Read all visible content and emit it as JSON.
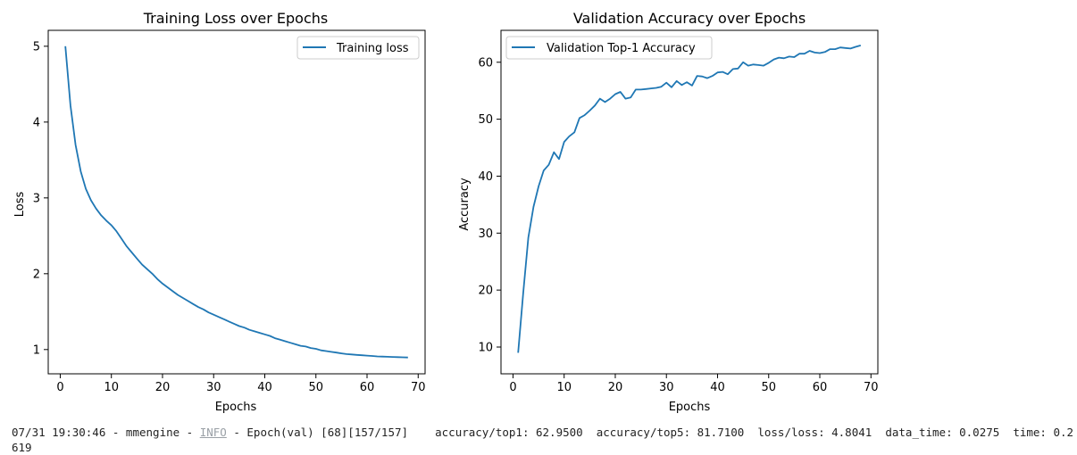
{
  "colors": {
    "line": "#1f77b4",
    "axis": "#000000",
    "legend_border": "#cccccc"
  },
  "chart_data": [
    {
      "type": "line",
      "title": "Training Loss over Epochs",
      "xlabel": "Epochs",
      "ylabel": "Loss",
      "xlim": [
        -2.35,
        71.35
      ],
      "ylim": [
        0.68,
        5.21
      ],
      "xticks": [
        "0",
        "10",
        "20",
        "30",
        "40",
        "50",
        "60",
        "70"
      ],
      "yticks": [
        "1",
        "2",
        "3",
        "4",
        "5"
      ],
      "grid": false,
      "legend_position": "top-right",
      "series": [
        {
          "name": "Training loss",
          "x": [
            1,
            2,
            3,
            4,
            5,
            6,
            7,
            8,
            9,
            10,
            11,
            12,
            13,
            14,
            15,
            16,
            17,
            18,
            19,
            20,
            21,
            22,
            23,
            24,
            25,
            26,
            27,
            28,
            29,
            30,
            31,
            32,
            33,
            34,
            35,
            36,
            37,
            38,
            39,
            40,
            41,
            42,
            43,
            44,
            45,
            46,
            47,
            48,
            49,
            50,
            51,
            52,
            53,
            54,
            55,
            56,
            57,
            58,
            59,
            60,
            61,
            62,
            63,
            64,
            65,
            66,
            67,
            68
          ],
          "y": [
            5.0,
            4.22,
            3.7,
            3.35,
            3.12,
            2.97,
            2.86,
            2.77,
            2.7,
            2.64,
            2.56,
            2.46,
            2.36,
            2.28,
            2.2,
            2.12,
            2.06,
            2.0,
            1.93,
            1.87,
            1.82,
            1.77,
            1.72,
            1.68,
            1.64,
            1.6,
            1.56,
            1.53,
            1.49,
            1.46,
            1.43,
            1.4,
            1.37,
            1.34,
            1.31,
            1.29,
            1.26,
            1.24,
            1.22,
            1.2,
            1.18,
            1.15,
            1.13,
            1.11,
            1.09,
            1.07,
            1.05,
            1.04,
            1.02,
            1.01,
            0.99,
            0.98,
            0.97,
            0.96,
            0.95,
            0.94,
            0.935,
            0.93,
            0.925,
            0.92,
            0.915,
            0.91,
            0.907,
            0.905,
            0.902,
            0.9,
            0.898,
            0.895
          ]
        }
      ]
    },
    {
      "type": "line",
      "title": "Validation Accuracy over Epochs",
      "xlabel": "Epochs",
      "ylabel": "Accuracy",
      "xlim": [
        -2.35,
        71.35
      ],
      "ylim": [
        5.3,
        65.6
      ],
      "xticks": [
        "0",
        "10",
        "20",
        "30",
        "40",
        "50",
        "60",
        "70"
      ],
      "yticks": [
        "10",
        "20",
        "30",
        "40",
        "50",
        "60"
      ],
      "grid": false,
      "legend_position": "top-left",
      "series": [
        {
          "name": "Validation Top-1 Accuracy",
          "x": [
            1,
            2,
            3,
            4,
            5,
            6,
            7,
            8,
            9,
            10,
            11,
            12,
            13,
            14,
            15,
            16,
            17,
            18,
            19,
            20,
            21,
            22,
            23,
            24,
            25,
            26,
            27,
            28,
            29,
            30,
            31,
            32,
            33,
            34,
            35,
            36,
            37,
            38,
            39,
            40,
            41,
            42,
            43,
            44,
            45,
            46,
            47,
            48,
            49,
            50,
            51,
            52,
            53,
            54,
            55,
            56,
            57,
            58,
            59,
            60,
            61,
            62,
            63,
            64,
            65,
            66,
            67,
            68
          ],
          "y": [
            9.0,
            19.5,
            29.2,
            34.6,
            38.2,
            41.0,
            42.0,
            44.2,
            43.0,
            46.0,
            47.0,
            47.7,
            50.2,
            50.7,
            51.5,
            52.4,
            53.6,
            53.0,
            53.6,
            54.4,
            54.8,
            53.6,
            53.8,
            55.2,
            55.2,
            55.3,
            55.4,
            55.5,
            55.7,
            56.4,
            55.6,
            56.7,
            56.0,
            56.5,
            55.9,
            57.6,
            57.5,
            57.2,
            57.6,
            58.2,
            58.3,
            57.9,
            58.8,
            58.9,
            60.0,
            59.4,
            59.6,
            59.5,
            59.4,
            59.9,
            60.5,
            60.8,
            60.7,
            61.0,
            60.9,
            61.5,
            61.5,
            62.0,
            61.7,
            61.6,
            61.8,
            62.3,
            62.3,
            62.6,
            62.5,
            62.4,
            62.7,
            62.95
          ]
        }
      ]
    }
  ],
  "log": {
    "line": "07/31 19:30:46 - mmengine - ",
    "level": "INFO",
    "message": " - Epoch(val) [68][157/157]    accuracy/top1: 62.9500  accuracy/top5: 81.7100  loss/loss: 4.8041  data_time: 0.0275  time: 0.2619"
  }
}
